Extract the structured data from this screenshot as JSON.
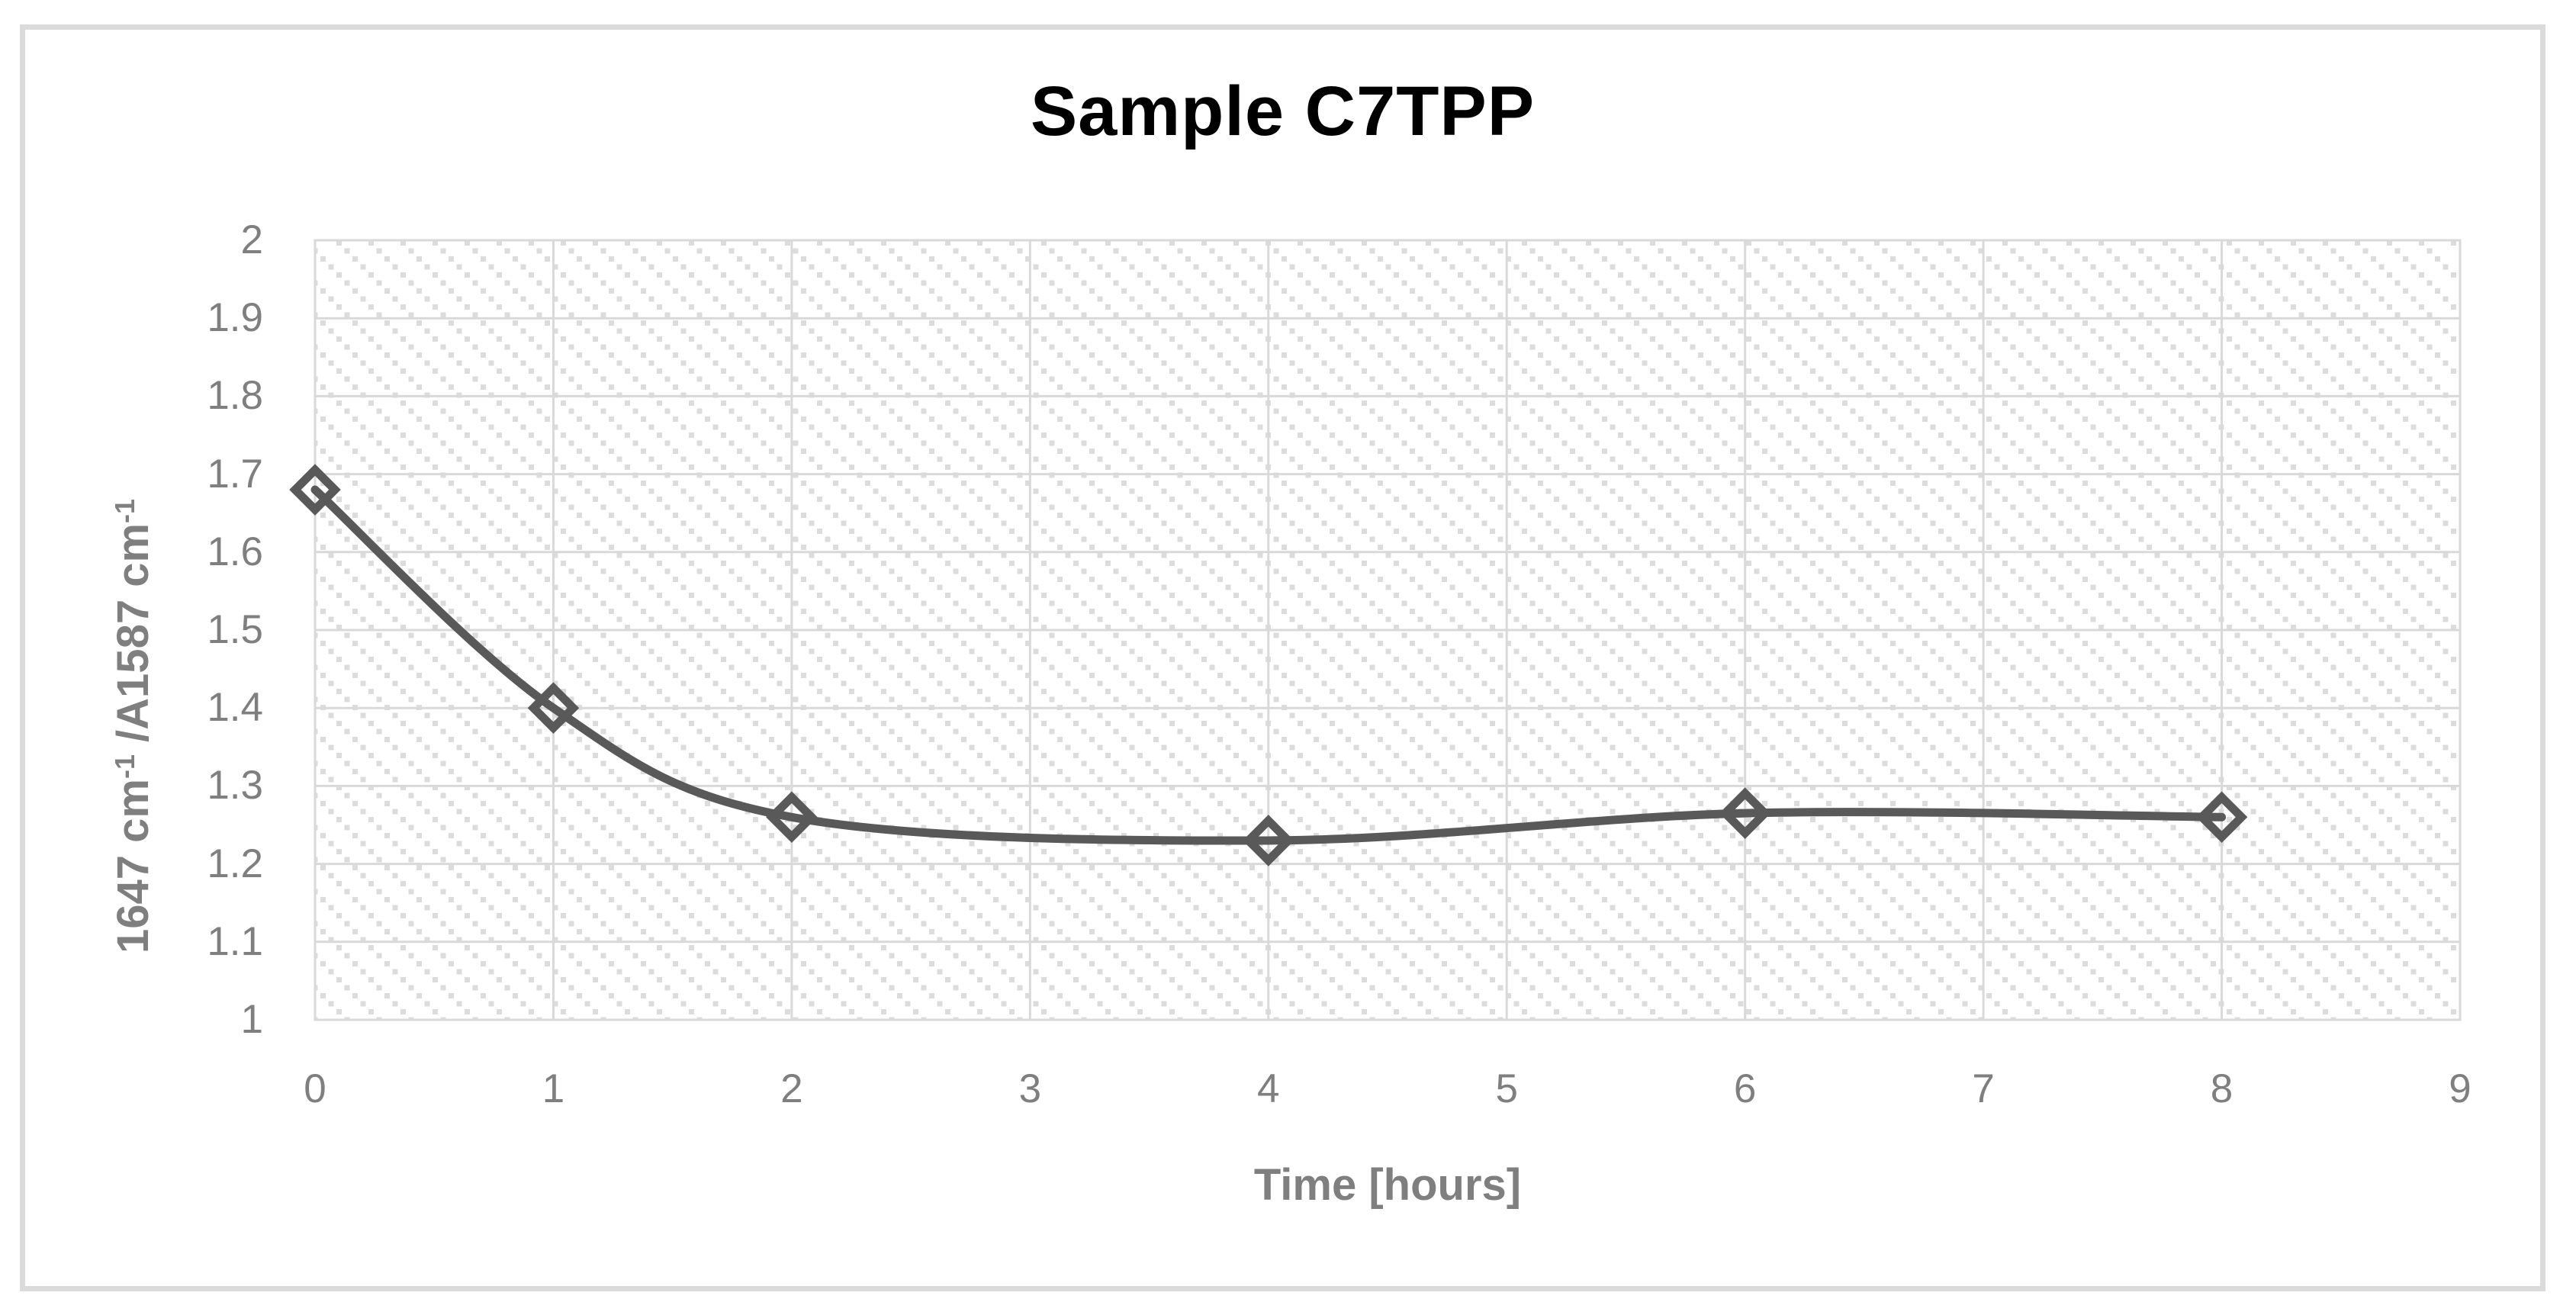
{
  "figure": {
    "background": "#ffffff",
    "border_color": "#dbdbdb"
  },
  "chart_data": {
    "type": "line",
    "title": "Sample C7TPP",
    "x": [
      0,
      1,
      2,
      4,
      6,
      8
    ],
    "y": [
      1.68,
      1.4,
      1.26,
      1.23,
      1.265,
      1.26
    ],
    "xlabel": "Time [hours]",
    "ylabel_plain": "1647 cm⁻¹ /A1587 cm⁻¹",
    "ylabel_parts": [
      "1647 cm",
      "-1",
      " /A1587 cm",
      "-1"
    ],
    "x_ticks": [
      "0",
      "1",
      "2",
      "3",
      "4",
      "5",
      "6",
      "7",
      "8",
      "9"
    ],
    "y_ticks": [
      "2",
      "1.9",
      "1.8",
      "1.7",
      "1.6",
      "1.5",
      "1.4",
      "1.3",
      "1.2",
      "1.1",
      "1"
    ],
    "xlim": [
      0,
      9
    ],
    "ylim": [
      1,
      2
    ],
    "grid": true,
    "legend": false,
    "smooth_line": true,
    "marker": "open-diamond",
    "plot_fill": "diagonal-hatch",
    "colors": {
      "line": "#595959",
      "marker": "#595959",
      "gridline": "#d9d9d9",
      "plot_border": "#d9d9d9",
      "hatch_dot": "#dcdcdc",
      "tick_text": "#7f7f7f",
      "axis_title_text": "#7f7f7f",
      "title_text": "#000000",
      "background": "#ffffff"
    }
  }
}
